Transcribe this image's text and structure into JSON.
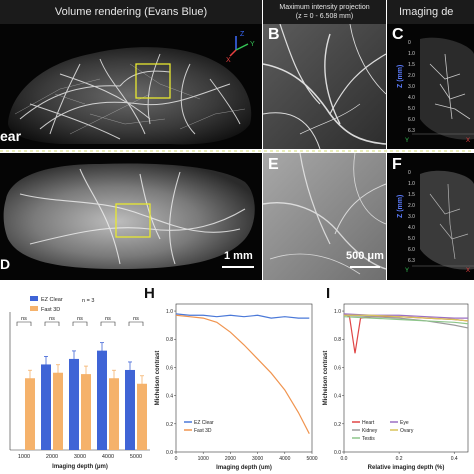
{
  "headers": {
    "volume": "Volume rendering (Evans Blue)",
    "mip_line1": "Maximum intensity projection",
    "mip_line2": "(z = 0 - 6.508 mm)",
    "imaging": "Imaging de"
  },
  "panels": {
    "B": "B",
    "C": "C",
    "E": "E",
    "F": "F",
    "H": "H",
    "I": "I"
  },
  "row_labels": {
    "top": "ear",
    "bottom": "D"
  },
  "scale_bars": {
    "main": "1 mm",
    "mip": "500 μm"
  },
  "axes_3d": {
    "x": "X",
    "y": "Y",
    "z": "Z"
  },
  "side_axis": {
    "label": "Z (mm)",
    "ticks": [
      "0",
      "1.0",
      "1.5",
      "2.0",
      "3.0",
      "4.0",
      "5.0",
      "6.0",
      "6.3"
    ],
    "y": "Y",
    "x": "X"
  },
  "chart_g": {
    "type": "bar",
    "legend": [
      "EZ Clear",
      "Fast 3D"
    ],
    "n_label": "n = 3",
    "xlabel": "Imaging depth (μm)",
    "categories": [
      "1000",
      "2000",
      "3000",
      "4000",
      "5000"
    ],
    "ns": [
      "ns",
      "ns",
      "ns",
      "ns",
      "ns"
    ],
    "colors": {
      "ez": "#3f64d6",
      "fast": "#f5b26b"
    }
  },
  "chart_data": [
    {
      "type": "bar",
      "categories": [
        "1000",
        "2000",
        "3000",
        "4000",
        "5000"
      ],
      "series": [
        {
          "name": "EZ Clear",
          "values": [
            null,
            0.62,
            0.66,
            0.72,
            0.58
          ]
        },
        {
          "name": "Fast 3D",
          "values": [
            0.52,
            0.56,
            0.55,
            0.52,
            0.48
          ]
        }
      ],
      "xlabel": "Imaging depth (μm)"
    },
    {
      "type": "line",
      "xlabel": "Imaging depth (um)",
      "ylabel": "Michelson contrast",
      "x_ticks": [
        "0",
        "1000",
        "2000",
        "3000",
        "4000",
        "5000"
      ],
      "y_ticks": [
        "0.0",
        "0.2",
        "0.4",
        "0.6",
        "0.8",
        "1.0"
      ],
      "xlim": [
        0,
        5000
      ],
      "ylim": [
        0,
        1.05
      ],
      "series": [
        {
          "name": "EZ Clear",
          "color": "#4a78d8",
          "x": [
            0,
            500,
            1000,
            1500,
            2000,
            2500,
            3000,
            3500,
            4000,
            4500,
            4900
          ],
          "y": [
            0.98,
            0.97,
            0.97,
            0.96,
            0.97,
            0.96,
            0.97,
            0.95,
            0.96,
            0.95,
            0.95
          ]
        },
        {
          "name": "Fast 3D",
          "color": "#f0944f",
          "x": [
            0,
            500,
            1000,
            1500,
            2000,
            2500,
            3000,
            3500,
            4000,
            4500,
            4900
          ],
          "y": [
            0.97,
            0.96,
            0.95,
            0.92,
            0.85,
            0.76,
            0.66,
            0.56,
            0.44,
            0.28,
            0.13
          ]
        }
      ]
    },
    {
      "type": "line",
      "xlabel": "Relative imaging depth (%)",
      "ylabel": "Michelson contrast",
      "x_ticks": [
        "0.0",
        "0.2",
        "0.4"
      ],
      "y_ticks": [
        "0.0",
        "0.2",
        "0.4",
        "0.6",
        "0.8",
        "1.0"
      ],
      "xlim": [
        0,
        0.45
      ],
      "ylim": [
        0,
        1.05
      ],
      "series": [
        {
          "name": "Heart",
          "color": "#e04646",
          "x": [
            0,
            0.02,
            0.04,
            0.06,
            0.1,
            0.2,
            0.3,
            0.4,
            0.45
          ],
          "y": [
            0.98,
            0.96,
            0.7,
            0.95,
            0.96,
            0.96,
            0.95,
            0.94,
            0.93
          ]
        },
        {
          "name": "Eye",
          "color": "#9b6fc2",
          "x": [
            0,
            0.1,
            0.2,
            0.3,
            0.4,
            0.45
          ],
          "y": [
            0.98,
            0.97,
            0.97,
            0.96,
            0.95,
            0.95
          ]
        },
        {
          "name": "Kidney",
          "color": "#9b9b9b",
          "x": [
            0,
            0.1,
            0.2,
            0.3,
            0.4,
            0.45
          ],
          "y": [
            0.97,
            0.96,
            0.95,
            0.93,
            0.9,
            0.88
          ]
        },
        {
          "name": "Ovary",
          "color": "#d8c35a",
          "x": [
            0,
            0.1,
            0.2,
            0.3,
            0.4,
            0.45
          ],
          "y": [
            0.97,
            0.97,
            0.96,
            0.95,
            0.94,
            0.93
          ]
        },
        {
          "name": "Testis",
          "color": "#8dc58a",
          "x": [
            0,
            0.1,
            0.2,
            0.3,
            0.4,
            0.45
          ],
          "y": [
            0.96,
            0.95,
            0.94,
            0.93,
            0.92,
            0.91
          ]
        }
      ]
    }
  ]
}
